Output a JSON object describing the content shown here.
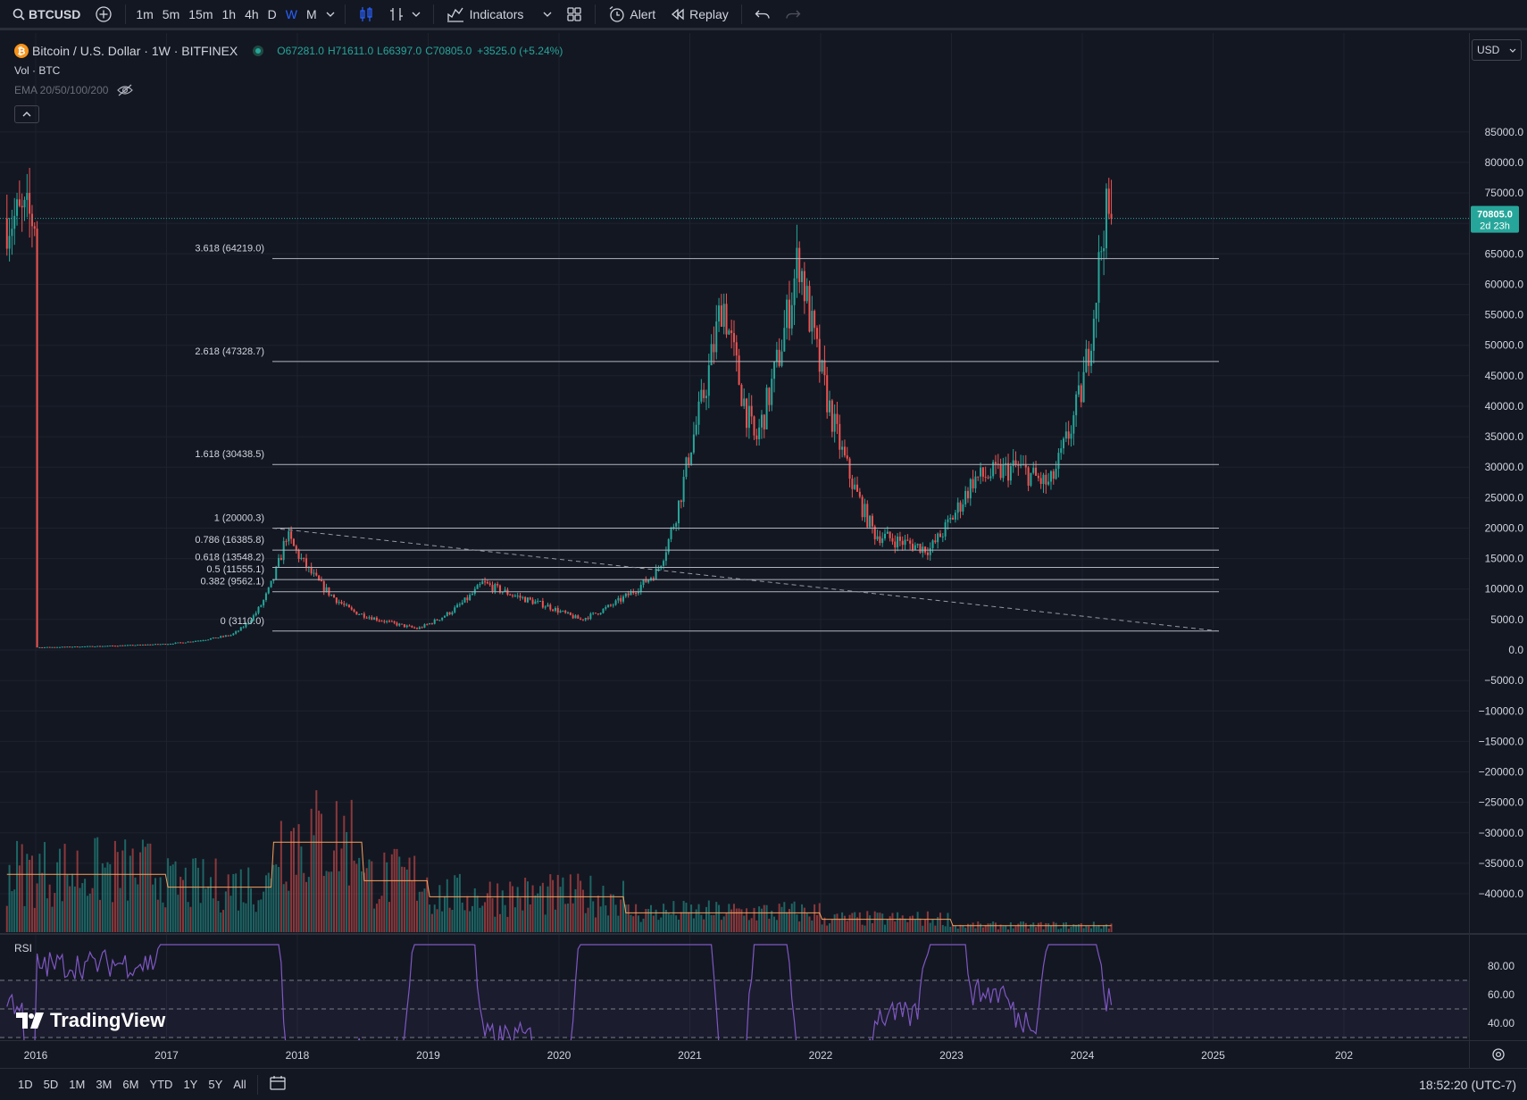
{
  "toolbar": {
    "symbol": "BTCUSD",
    "timeframes": [
      "1m",
      "5m",
      "15m",
      "1h",
      "4h",
      "D",
      "W",
      "M"
    ],
    "active_timeframe": "W",
    "indicators_label": "Indicators",
    "alert_label": "Alert",
    "replay_label": "Replay"
  },
  "legend": {
    "title": "Bitcoin / U.S. Dollar · 1W · BITFINEX",
    "open": "O67281.0",
    "high": "H71611.0",
    "low": "L66397.0",
    "close": "C70805.0",
    "change": "+3525.0 (+5.24%)",
    "vol": "Vol · BTC",
    "ema": "EMA 20/50/100/200"
  },
  "currency": "USD",
  "price_axis": {
    "ticks": [
      "85000.0",
      "80000.0",
      "75000.0",
      "65000.0",
      "60000.0",
      "55000.0",
      "50000.0",
      "45000.0",
      "40000.0",
      "35000.0",
      "30000.0",
      "25000.0",
      "20000.0",
      "15000.0",
      "10000.0",
      "5000.0",
      "0.0",
      "−5000.0",
      "−10000.0",
      "−15000.0",
      "−20000.0",
      "−25000.0",
      "−30000.0",
      "−35000.0",
      "−40000.0"
    ],
    "last_price": "70805.0",
    "countdown": "2d 23h"
  },
  "rsi": {
    "label": "RSI",
    "ticks": [
      "80.00",
      "60.00",
      "40.00"
    ]
  },
  "fib_levels": [
    {
      "label": "3.618 (64219.0)",
      "value": 64219
    },
    {
      "label": "2.618 (47328.7)",
      "value": 47328.7
    },
    {
      "label": "1.618 (30438.5)",
      "value": 30438.5
    },
    {
      "label": "1 (20000.3)",
      "value": 20000.3
    },
    {
      "label": "0.786 (16385.8)",
      "value": 16385.8
    },
    {
      "label": "0.618 (13548.2)",
      "value": 13548.2
    },
    {
      "label": "0.5 (11555.1)",
      "value": 11555.1
    },
    {
      "label": "0.382 (9562.1)",
      "value": 9562.1
    },
    {
      "label": "0 (3110.0)",
      "value": 3110
    }
  ],
  "time_axis": [
    "2016",
    "2017",
    "2018",
    "2019",
    "2020",
    "2021",
    "2022",
    "2023",
    "2024",
    "2025",
    "202"
  ],
  "bottom": {
    "ranges": [
      "1D",
      "5D",
      "1M",
      "3M",
      "6M",
      "YTD",
      "1Y",
      "5Y",
      "All"
    ],
    "clock": "18:52:20 (UTC-7)"
  },
  "watermark": "TradingView",
  "colors": {
    "up": "#26a69a",
    "down": "#ef5350",
    "rsi": "#7e57c2",
    "vol_ma": "#f7a25d",
    "accent": "#2962ff"
  },
  "chart_data": {
    "type": "candlestick",
    "x": [
      "2016-01",
      "2016-07",
      "2017-01",
      "2017-07",
      "2017-12",
      "2018-06",
      "2018-12",
      "2019-06",
      "2019-12",
      "2020-03",
      "2020-10",
      "2021-01",
      "2021-04",
      "2021-07",
      "2021-11",
      "2022-06",
      "2022-11",
      "2023-03",
      "2023-07",
      "2023-10",
      "2024-01",
      "2024-03"
    ],
    "close": [
      430,
      650,
      1000,
      2500,
      19000,
      6400,
      3500,
      11000,
      7200,
      5000,
      13000,
      33000,
      58000,
      34000,
      65000,
      19000,
      16500,
      28000,
      30000,
      27000,
      43000,
      70805
    ],
    "ylim": [
      -40000,
      85000
    ]
  }
}
